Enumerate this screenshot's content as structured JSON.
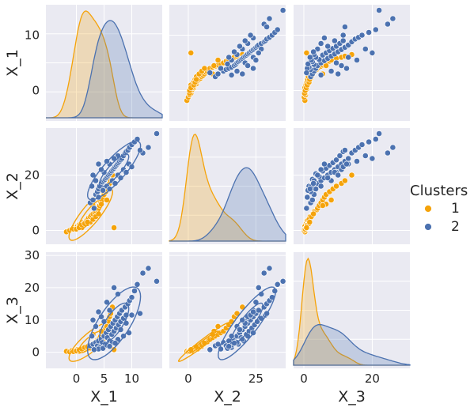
{
  "chart_data": {
    "type": "scatter",
    "kind": "pairplot",
    "variables": [
      "X_1",
      "X_2",
      "X_3"
    ],
    "legend": {
      "title": "Clusters",
      "placement": "right",
      "entries": [
        {
          "label": "1",
          "color": "#f5a30a"
        },
        {
          "label": "2",
          "color": "#4c72b0"
        }
      ]
    },
    "ticks": {
      "X_1": {
        "y": [
          "0",
          "10"
        ],
        "x": [
          "0",
          "5",
          "10"
        ],
        "ylim": [
          -5.5,
          15.5
        ],
        "xlim": [
          -5.5,
          15.5
        ]
      },
      "X_2": {
        "y": [
          "0",
          "20"
        ],
        "x": [
          "0",
          "25"
        ],
        "ylim": [
          -5,
          37
        ],
        "xlim": [
          -7,
          36
        ]
      },
      "X_3": {
        "y": [
          "0",
          "10",
          "20",
          "30"
        ],
        "x": [
          "0",
          "20"
        ],
        "ylim": [
          -5,
          31
        ],
        "xlim": [
          -3,
          31
        ]
      }
    },
    "series": [
      {
        "name": "1",
        "color": "#f5a30a",
        "points": [
          [
            -1.8,
            -0.5,
            0.3
          ],
          [
            -1.2,
            0.0,
            0.1
          ],
          [
            -0.8,
            0.5,
            0.5
          ],
          [
            -0.5,
            1.0,
            0.4
          ],
          [
            0.0,
            1.0,
            0.6
          ],
          [
            0.2,
            1.5,
            0.8
          ],
          [
            0.5,
            2.0,
            0.5
          ],
          [
            0.8,
            2.0,
            1.0
          ],
          [
            1.0,
            2.5,
            0.7
          ],
          [
            1.2,
            3.0,
            1.2
          ],
          [
            1.5,
            3.0,
            1.4
          ],
          [
            1.8,
            3.5,
            1.0
          ],
          [
            2.0,
            4.0,
            1.6
          ],
          [
            2.2,
            4.5,
            2.0
          ],
          [
            2.5,
            5.0,
            1.8
          ],
          [
            2.7,
            5.5,
            2.4
          ],
          [
            3.0,
            6.0,
            2.6
          ],
          [
            3.3,
            6.5,
            3.0
          ],
          [
            3.5,
            7.0,
            3.2
          ],
          [
            3.8,
            7.5,
            3.8
          ],
          [
            4.0,
            8.0,
            4.0
          ],
          [
            4.2,
            9.0,
            4.5
          ],
          [
            4.4,
            10.0,
            5.0
          ],
          [
            4.6,
            11.0,
            5.5
          ],
          [
            4.8,
            12.0,
            6.0
          ],
          [
            5.0,
            13.0,
            6.5
          ],
          [
            5.3,
            14.0,
            7.5
          ],
          [
            5.6,
            15.0,
            8.5
          ],
          [
            5.8,
            16.0,
            9.5
          ],
          [
            6.0,
            17.0,
            11.0
          ],
          [
            6.2,
            18.0,
            12.0
          ],
          [
            1.0,
            1.0,
            0.6
          ],
          [
            0.5,
            1.5,
            0.3
          ],
          [
            1.5,
            2.0,
            0.9
          ],
          [
            2.0,
            2.5,
            1.1
          ],
          [
            2.5,
            3.0,
            1.3
          ],
          [
            3.0,
            4.0,
            1.5
          ],
          [
            3.5,
            5.0,
            2.2
          ],
          [
            4.0,
            6.0,
            2.8
          ],
          [
            -0.5,
            0.5,
            0.2
          ],
          [
            0.0,
            0.5,
            0.4
          ],
          [
            0.5,
            1.0,
            0.7
          ],
          [
            1.0,
            2.0,
            1.0
          ],
          [
            1.5,
            2.5,
            1.5
          ],
          [
            2.0,
            3.0,
            1.7
          ],
          [
            5.5,
            11.0,
            8.0
          ],
          [
            4.5,
            9.5,
            6.5
          ],
          [
            6.5,
            20.0,
            14.0
          ],
          [
            3.0,
            9.0,
            5.5
          ],
          [
            6.8,
            1.0,
            0.8
          ]
        ]
      },
      {
        "name": "2",
        "color": "#4c72b0",
        "points": [
          [
            2.5,
            10.0,
            2.0
          ],
          [
            3.0,
            11.0,
            2.5
          ],
          [
            3.5,
            13.0,
            3.0
          ],
          [
            3.8,
            14.0,
            2.0
          ],
          [
            4.0,
            15.0,
            3.5
          ],
          [
            4.2,
            16.0,
            1.5
          ],
          [
            4.5,
            17.0,
            4.0
          ],
          [
            4.7,
            17.5,
            3.0
          ],
          [
            5.0,
            18.0,
            5.0
          ],
          [
            5.2,
            18.5,
            2.5
          ],
          [
            5.4,
            19.0,
            6.0
          ],
          [
            5.6,
            19.5,
            4.5
          ],
          [
            5.8,
            20.0,
            7.0
          ],
          [
            6.0,
            20.5,
            3.5
          ],
          [
            6.2,
            21.0,
            8.0
          ],
          [
            6.4,
            21.5,
            5.5
          ],
          [
            6.6,
            22.0,
            9.0
          ],
          [
            6.8,
            22.5,
            6.5
          ],
          [
            7.0,
            23.0,
            10.0
          ],
          [
            7.2,
            23.5,
            7.5
          ],
          [
            7.4,
            24.0,
            11.0
          ],
          [
            7.6,
            24.5,
            8.5
          ],
          [
            7.8,
            25.0,
            12.0
          ],
          [
            8.0,
            25.5,
            9.5
          ],
          [
            8.2,
            26.0,
            13.0
          ],
          [
            8.5,
            27.0,
            10.5
          ],
          [
            8.8,
            28.0,
            14.0
          ],
          [
            9.0,
            28.5,
            11.5
          ],
          [
            9.3,
            29.0,
            15.0
          ],
          [
            9.6,
            30.0,
            16.0
          ],
          [
            10.0,
            31.0,
            17.0
          ],
          [
            10.5,
            32.0,
            19.0
          ],
          [
            11.0,
            33.0,
            21.0
          ],
          [
            12.0,
            28.0,
            24.5
          ],
          [
            13.0,
            30.0,
            26.0
          ],
          [
            14.5,
            35.0,
            22.0
          ],
          [
            11.5,
            29.0,
            12.0
          ],
          [
            4.0,
            12.0,
            1.0
          ],
          [
            3.2,
            8.0,
            0.8
          ],
          [
            4.8,
            14.5,
            1.2
          ],
          [
            5.5,
            16.0,
            2.2
          ],
          [
            6.5,
            18.0,
            3.0
          ],
          [
            7.5,
            20.0,
            4.0
          ],
          [
            8.5,
            22.0,
            5.0
          ],
          [
            9.5,
            24.0,
            6.0
          ],
          [
            6.0,
            15.0,
            1.8
          ],
          [
            7.0,
            17.0,
            2.8
          ],
          [
            5.0,
            21.0,
            9.5
          ],
          [
            6.0,
            24.0,
            13.0
          ],
          [
            4.5,
            22.0,
            11.0
          ],
          [
            3.5,
            18.0,
            8.0
          ],
          [
            7.5,
            27.0,
            18.0
          ],
          [
            6.8,
            26.0,
            20.0
          ],
          [
            5.5,
            25.0,
            15.5
          ],
          [
            8.0,
            19.0,
            7.0
          ],
          [
            9.0,
            21.0,
            9.0
          ],
          [
            10.0,
            23.0,
            11.5
          ],
          [
            2.8,
            16.0,
            5.0
          ],
          [
            3.0,
            20.0,
            10.0
          ],
          [
            4.0,
            24.0,
            12.5
          ]
        ]
      }
    ]
  }
}
